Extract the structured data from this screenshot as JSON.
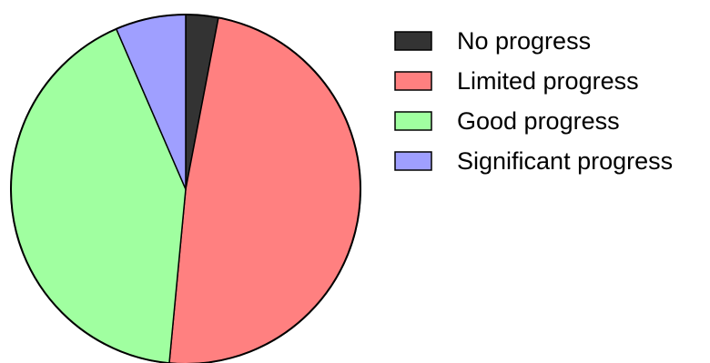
{
  "chart_data": {
    "type": "pie",
    "title": "",
    "slices": [
      {
        "label": "No progress",
        "value": 3,
        "color": "#333333"
      },
      {
        "label": "Limited progress",
        "value": 48.5,
        "color": "#ff8080"
      },
      {
        "label": "Good progress",
        "value": 42,
        "color": "#a0ffa0"
      },
      {
        "label": "Significant progress",
        "value": 6.5,
        "color": "#9f9fff"
      }
    ],
    "start_angle": "12 o'clock",
    "direction": "clockwise",
    "legend": {
      "position": "right"
    }
  }
}
